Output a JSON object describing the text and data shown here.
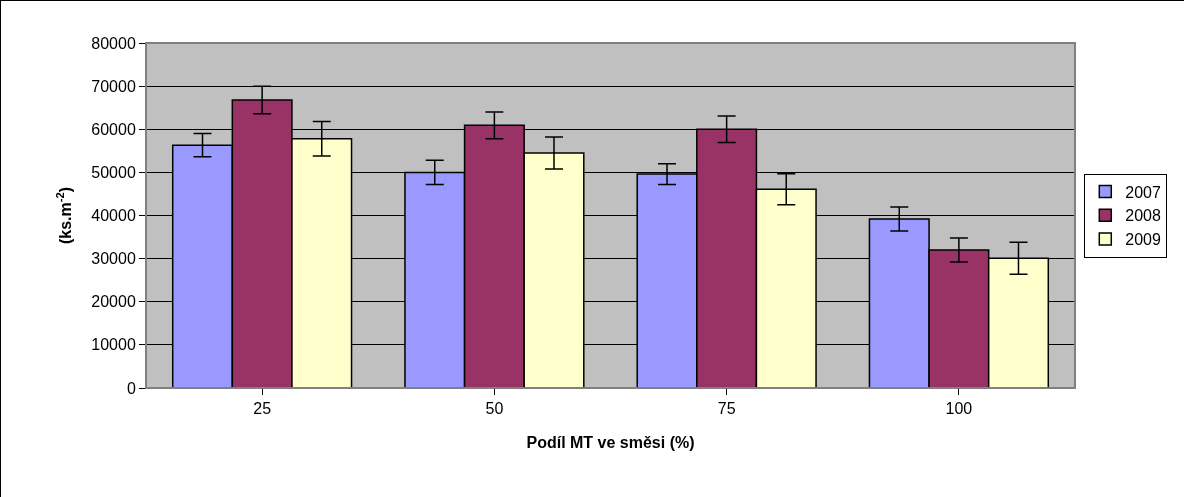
{
  "chart_data": {
    "type": "bar",
    "xlabel": "Podíl MT ve směsi (%)",
    "ylabel": "(ks.m$^{-2}$)",
    "categories": [
      "25",
      "50",
      "75",
      "100"
    ],
    "series": [
      {
        "name": "2007",
        "color": "#9999ff",
        "values": [
          56300,
          50000,
          49600,
          39200
        ],
        "errors": [
          2700,
          2800,
          2400,
          2800
        ]
      },
      {
        "name": "2008",
        "color": "#993366",
        "values": [
          66800,
          60900,
          60000,
          32000
        ],
        "errors": [
          3200,
          3100,
          3100,
          2800
        ]
      },
      {
        "name": "2009",
        "color": "#ffffcc",
        "values": [
          57800,
          54500,
          46100,
          30100
        ],
        "errors": [
          4000,
          3700,
          3600,
          3700
        ]
      }
    ],
    "ylim": [
      0,
      80000
    ],
    "yticks": [
      0,
      10000,
      20000,
      30000,
      40000,
      50000,
      60000,
      70000,
      80000
    ],
    "grid": "y",
    "legend": "right"
  }
}
